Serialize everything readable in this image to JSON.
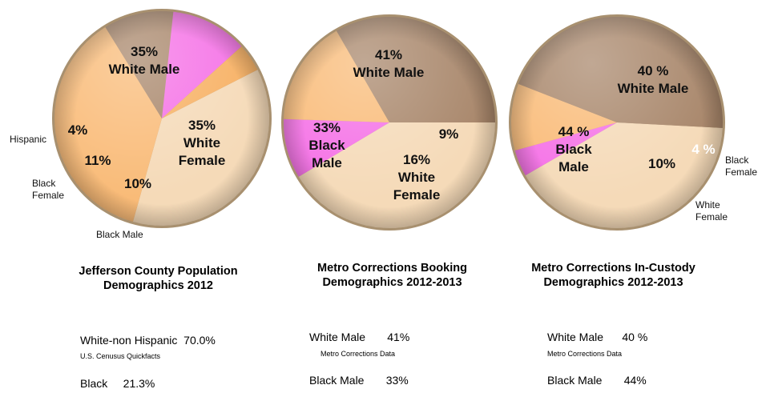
{
  "charts": [
    {
      "caption_lines": [
        "Jefferson County Population",
        "Demographics 2012"
      ],
      "stats": [
        "White-non Hispanic  70.0%",
        "Black     21.3%"
      ],
      "source": "U.S. Cenusus Quickfacts"
    },
    {
      "caption_lines": [
        "Metro Corrections Booking",
        "Demographics 2012-2013"
      ],
      "stats": [
        "White Male       41%",
        "Black Male       33%"
      ],
      "source": "Metro Corrections Data"
    },
    {
      "caption_lines": [
        "Metro Corrections In-Custody",
        "Demographics 2012-2013"
      ],
      "stats": [
        "White Male      40 %",
        "Black Male       44%"
      ],
      "source": "Metro Corrections Data"
    }
  ],
  "colors": {
    "white_male": "#f5dab8",
    "white_female": "#f9bb78",
    "hispanic": "#f7b062",
    "black_female": "#f571e6",
    "black_male": "#a8866a",
    "rim": "#a8906f"
  },
  "chart_data": [
    {
      "type": "pie",
      "slices": [
        {
          "key": "white_male",
          "value": 35,
          "label_lines": [
            "35%",
            "White Male"
          ]
        },
        {
          "key": "white_female",
          "value": 35,
          "label_lines": [
            "35%",
            "White",
            "Female"
          ]
        },
        {
          "key": "black_male",
          "value": 10,
          "label_lines": [
            "10%"
          ],
          "ext_label_lines": [
            "Black Male"
          ]
        },
        {
          "key": "black_female",
          "value": 11,
          "label_lines": [
            "11%"
          ],
          "ext_label_lines": [
            "Black",
            "Female"
          ]
        },
        {
          "key": "hispanic",
          "value": 4,
          "label_lines": [
            "4%"
          ],
          "ext_label_lines": [
            "Hispanic"
          ]
        }
      ]
    },
    {
      "type": "pie",
      "slices": [
        {
          "key": "white_male",
          "value": 41,
          "label_lines": [
            "41%",
            "White Male"
          ]
        },
        {
          "key": "black_female",
          "value": 9,
          "label_lines": [
            "9%"
          ]
        },
        {
          "key": "white_female",
          "value": 16,
          "label_lines": [
            "16%",
            "White",
            "Female"
          ]
        },
        {
          "key": "black_male",
          "value": 33,
          "label_lines": [
            "33%",
            "Black",
            "Male"
          ]
        }
      ]
    },
    {
      "type": "pie",
      "slices": [
        {
          "key": "white_male",
          "value": 40,
          "label_lines": [
            "40 %",
            "White Male"
          ]
        },
        {
          "key": "black_female",
          "value": 4,
          "label_lines": [
            "4 %"
          ],
          "ext_label_lines": [
            "Black",
            "Female"
          ]
        },
        {
          "key": "white_female",
          "value": 10,
          "label_lines": [
            "10%"
          ],
          "ext_label_lines": [
            "White",
            "Female"
          ]
        },
        {
          "key": "black_male",
          "value": 44,
          "label_lines": [
            "44 %",
            "Black",
            "Male"
          ]
        }
      ]
    }
  ]
}
